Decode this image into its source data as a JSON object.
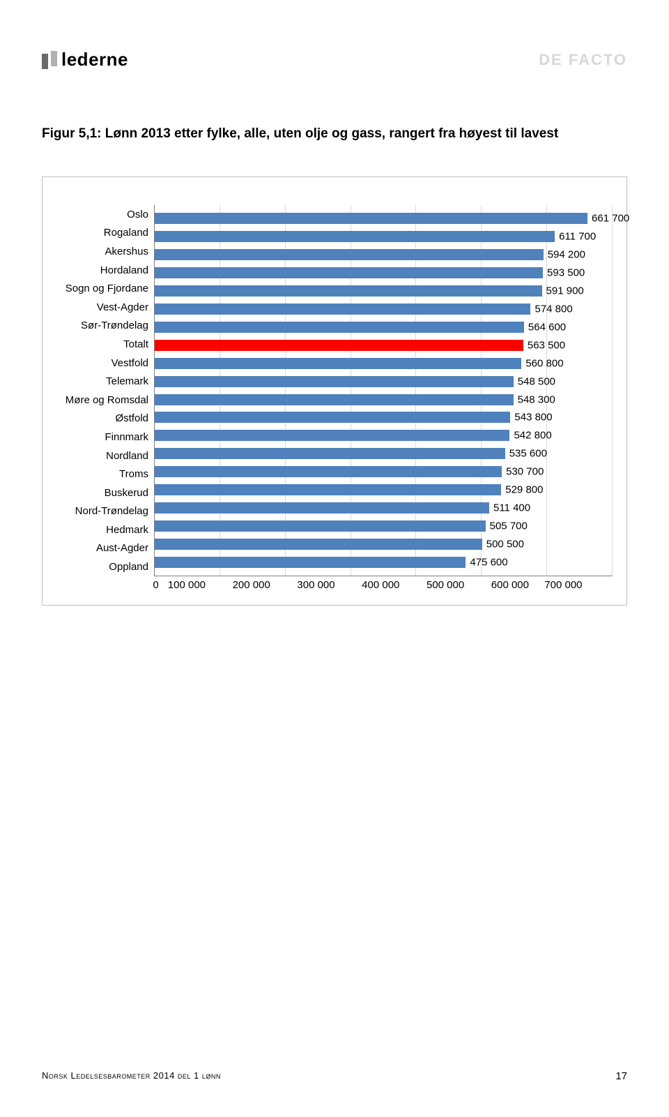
{
  "header": {
    "logo_text": "lederne",
    "logo_text_color": "#000000",
    "logo_mark_left_color": "#6b6b6b",
    "logo_mark_right_color": "#b0b0b0",
    "right_brand": "DE FACTO",
    "right_brand_color": "#d8d8d8"
  },
  "figure": {
    "title": "Figur 5,1: Lønn 2013 etter fylke, alle, uten olje og gass, rangert fra høyest til lavest",
    "title_fontsize": 19,
    "title_color": "#000000"
  },
  "chart": {
    "type": "bar-horizontal",
    "xmax": 700000,
    "xtick_step": 100000,
    "xtick_labels": [
      "0",
      "100 000",
      "200 000",
      "300 000",
      "400 000",
      "500 000",
      "600 000",
      "700 000"
    ],
    "grid_color": "#d9d9d9",
    "axis_color": "#7f7f7f",
    "label_fontsize": 15,
    "value_fontsize": 15,
    "default_bar_color": "#4f81bd",
    "highlight_bar_color": "#ff0000",
    "background_color": "#ffffff",
    "border_color": "#bfbfbf",
    "rows": [
      {
        "label": "Oslo",
        "value": 661700,
        "display": "661 700",
        "color": "#4f81bd"
      },
      {
        "label": "Rogaland",
        "value": 611700,
        "display": "611 700",
        "color": "#4f81bd"
      },
      {
        "label": "Akershus",
        "value": 594200,
        "display": "594 200",
        "color": "#4f81bd"
      },
      {
        "label": "Hordaland",
        "value": 593500,
        "display": "593 500",
        "color": "#4f81bd"
      },
      {
        "label": "Sogn og Fjordane",
        "value": 591900,
        "display": "591 900",
        "color": "#4f81bd"
      },
      {
        "label": "Vest-Agder",
        "value": 574800,
        "display": "574 800",
        "color": "#4f81bd"
      },
      {
        "label": "Sør-Trøndelag",
        "value": 564600,
        "display": "564 600",
        "color": "#4f81bd"
      },
      {
        "label": "Totalt",
        "value": 563500,
        "display": "563 500",
        "color": "#ff0000"
      },
      {
        "label": "Vestfold",
        "value": 560800,
        "display": "560 800",
        "color": "#4f81bd"
      },
      {
        "label": "Telemark",
        "value": 548500,
        "display": "548 500",
        "color": "#4f81bd"
      },
      {
        "label": "Møre og Romsdal",
        "value": 548300,
        "display": "548 300",
        "color": "#4f81bd"
      },
      {
        "label": "Østfold",
        "value": 543800,
        "display": "543 800",
        "color": "#4f81bd"
      },
      {
        "label": "Finnmark",
        "value": 542800,
        "display": "542 800",
        "color": "#4f81bd"
      },
      {
        "label": "Nordland",
        "value": 535600,
        "display": "535 600",
        "color": "#4f81bd"
      },
      {
        "label": "Troms",
        "value": 530700,
        "display": "530 700",
        "color": "#4f81bd"
      },
      {
        "label": "Buskerud",
        "value": 529800,
        "display": "529 800",
        "color": "#4f81bd"
      },
      {
        "label": "Nord-Trøndelag",
        "value": 511400,
        "display": "511 400",
        "color": "#4f81bd"
      },
      {
        "label": "Hedmark",
        "value": 505700,
        "display": "505 700",
        "color": "#4f81bd"
      },
      {
        "label": "Aust-Agder",
        "value": 500500,
        "display": "500 500",
        "color": "#4f81bd"
      },
      {
        "label": "Oppland",
        "value": 475600,
        "display": "475 600",
        "color": "#4f81bd"
      }
    ]
  },
  "footer": {
    "left": "Norsk Ledelsesbarometer 2014 del 1 lønn",
    "page": "17"
  }
}
